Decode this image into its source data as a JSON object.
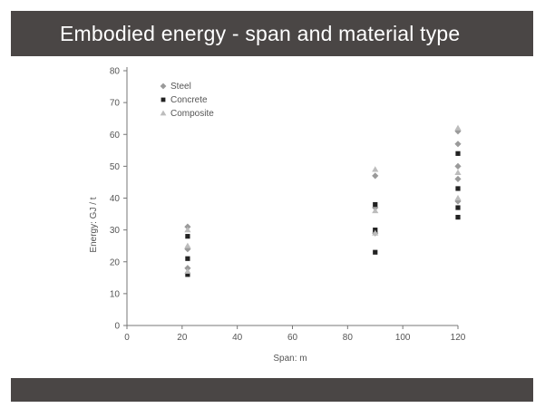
{
  "slide": {
    "title": "Embodied energy - span and material type"
  },
  "chart_data": {
    "type": "scatter",
    "title": "",
    "xlabel": "Span: m",
    "ylabel": "Energy: GJ / t",
    "xlim": [
      0,
      120
    ],
    "ylim": [
      0,
      80
    ],
    "x_ticks": [
      0,
      20,
      40,
      60,
      80,
      100,
      120
    ],
    "y_ticks": [
      0,
      10,
      20,
      30,
      40,
      50,
      60,
      70,
      80
    ],
    "grid": false,
    "legend_position": "top-left",
    "series": [
      {
        "name": "Steel",
        "marker": "diamond",
        "color": "#9a9a9a",
        "points": [
          [
            22,
            31
          ],
          [
            22,
            24
          ],
          [
            22,
            18
          ],
          [
            90,
            47
          ],
          [
            90,
            37
          ],
          [
            90,
            29
          ],
          [
            120,
            61
          ],
          [
            120,
            57
          ],
          [
            120,
            50
          ],
          [
            120,
            46
          ],
          [
            120,
            39
          ]
        ]
      },
      {
        "name": "Concrete",
        "marker": "square",
        "color": "#222222",
        "points": [
          [
            22,
            28
          ],
          [
            22,
            21
          ],
          [
            22,
            16
          ],
          [
            90,
            38
          ],
          [
            90,
            30
          ],
          [
            90,
            23
          ],
          [
            120,
            54
          ],
          [
            120,
            43
          ],
          [
            120,
            37
          ],
          [
            120,
            34
          ]
        ]
      },
      {
        "name": "Composite",
        "marker": "triangle",
        "color": "#bdbdbd",
        "points": [
          [
            22,
            30
          ],
          [
            22,
            25
          ],
          [
            22,
            17
          ],
          [
            90,
            49
          ],
          [
            90,
            36
          ],
          [
            90,
            29
          ],
          [
            120,
            62
          ],
          [
            120,
            48
          ],
          [
            120,
            40
          ]
        ]
      }
    ]
  }
}
